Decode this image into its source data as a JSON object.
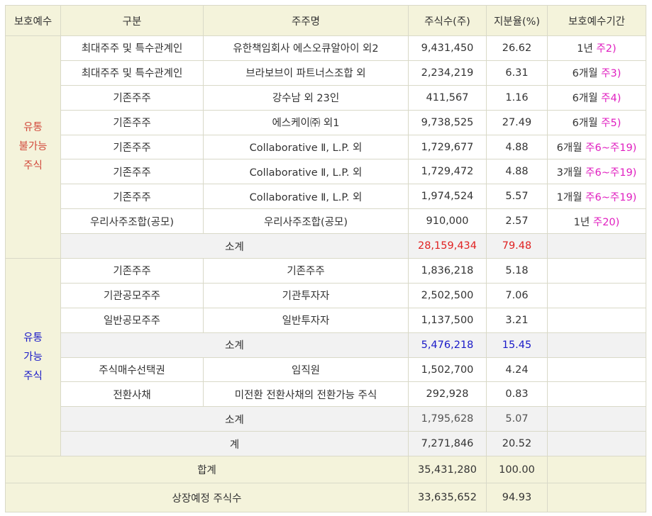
{
  "headers": [
    "보호예수",
    "구분",
    "주주명",
    "주식수(주)",
    "지분율(%)",
    "보호예수기간"
  ],
  "lockup_group": {
    "label_lines": [
      "유통",
      "불가능",
      "주식"
    ],
    "rows": [
      {
        "type": "최대주주 및 특수관계인",
        "holder": "유한책임회사 에스오큐알아이 외2",
        "shares": "9,431,450",
        "ratio": "26.62",
        "period": "1년",
        "note": "주2)"
      },
      {
        "type": "최대주주 및 특수관계인",
        "holder": "브라보브이 파트너스조합 외",
        "shares": "2,234,219",
        "ratio": "6.31",
        "period": "6개월",
        "note": "주3)"
      },
      {
        "type": "기존주주",
        "holder": "강수남 외 23인",
        "shares": "411,567",
        "ratio": "1.16",
        "period": "6개월",
        "note": "주4)"
      },
      {
        "type": "기존주주",
        "holder": "에스케이㈜ 외1",
        "shares": "9,738,525",
        "ratio": "27.49",
        "period": "6개월",
        "note": "주5)"
      },
      {
        "type": "기존주주",
        "holder": "Collaborative Ⅱ, L.P. 외",
        "shares": "1,729,677",
        "ratio": "4.88",
        "period": "6개월",
        "note": "주6~주19)"
      },
      {
        "type": "기존주주",
        "holder": "Collaborative Ⅱ, L.P. 외",
        "shares": "1,729,472",
        "ratio": "4.88",
        "period": "3개월",
        "note": "주6~주19)"
      },
      {
        "type": "기존주주",
        "holder": "Collaborative Ⅱ, L.P. 외",
        "shares": "1,974,524",
        "ratio": "5.57",
        "period": "1개월",
        "note": "주6~주19)"
      },
      {
        "type": "우리사주조합(공모)",
        "holder": "우리사주조합(공모)",
        "shares": "910,000",
        "ratio": "2.57",
        "period": "1년",
        "note": "주20)"
      }
    ],
    "subtotal": {
      "label": "소계",
      "shares": "28,159,434",
      "ratio": "79.48"
    }
  },
  "free_group": {
    "label_lines": [
      "유통",
      "가능",
      "주식"
    ],
    "rows_a": [
      {
        "type": "기존주주",
        "holder": "기존주주",
        "shares": "1,836,218",
        "ratio": "5.18"
      },
      {
        "type": "기관공모주주",
        "holder": "기관투자자",
        "shares": "2,502,500",
        "ratio": "7.06"
      },
      {
        "type": "일반공모주주",
        "holder": "일반투자자",
        "shares": "1,137,500",
        "ratio": "3.21"
      }
    ],
    "subtotal_a": {
      "label": "소계",
      "shares": "5,476,218",
      "ratio": "15.45"
    },
    "rows_b": [
      {
        "type": "주식매수선택권",
        "holder": "임직원",
        "shares": "1,502,700",
        "ratio": "4.24"
      },
      {
        "type": "전환사채",
        "holder": "미전환 전환사채의 전환가능 주식",
        "shares": "292,928",
        "ratio": "0.83"
      }
    ],
    "subtotal_b": {
      "label": "소계",
      "shares": "1,795,628",
      "ratio": "5.07"
    },
    "total": {
      "label": "계",
      "shares": "7,271,846",
      "ratio": "20.52"
    }
  },
  "grand_total": {
    "label": "합계",
    "shares": "35,431,280",
    "ratio": "100.00"
  },
  "listing_total": {
    "label": "상장예정 주식수",
    "shares": "33,635,652",
    "ratio": "94.93"
  }
}
